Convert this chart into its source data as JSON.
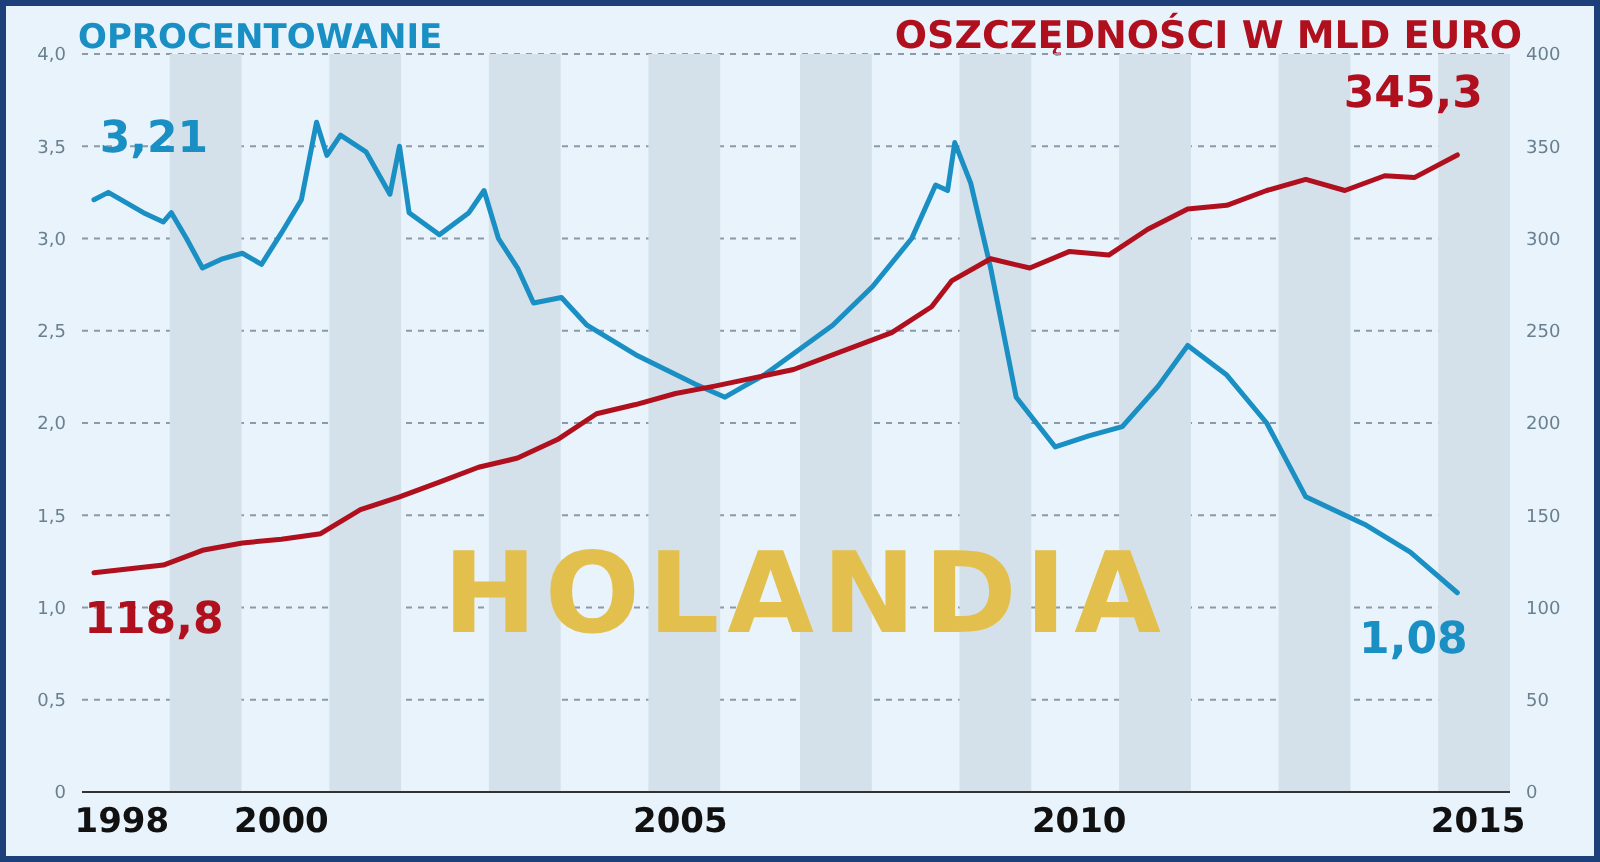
{
  "chart_data": {
    "type": "line",
    "ylabel": "OPROCENTOWANIE",
    "y2label": "OSZCZĘDNOŚCI W MLD EURO",
    "annotations": [
      "HOLANDIA"
    ],
    "xlim": [
      1997.5,
      2015.4
    ],
    "xticks": [
      1998,
      2000,
      2005,
      2010,
      2015
    ],
    "ylim": [
      0,
      4
    ],
    "yticks": [
      0,
      {
        "value": 0.5,
        "label": "0,5"
      },
      {
        "value": 1,
        "label": "1,0"
      },
      {
        "value": 1.5,
        "label": "1,5"
      },
      {
        "value": 2,
        "label": "2,0"
      },
      {
        "value": 2.5,
        "label": "2,5"
      },
      {
        "value": 3,
        "label": "3,0"
      },
      {
        "value": 3.5,
        "label": "3,5"
      },
      {
        "value": 4,
        "label": "4,0"
      }
    ],
    "y2lim": [
      0,
      400
    ],
    "y2ticks": [
      0,
      50,
      100,
      150,
      200,
      250,
      300,
      350,
      400
    ],
    "grid": "y",
    "legend": false,
    "marker": "none",
    "line_style": "solid",
    "bands": [
      {
        "axis": "x",
        "from": 1998.6,
        "to": 1999.5,
        "color": "#d5e1ea"
      },
      {
        "axis": "x",
        "from": 2000.6,
        "to": 2001.5,
        "color": "#d5e1ea"
      },
      {
        "axis": "x",
        "from": 2002.6,
        "to": 2003.5,
        "color": "#d5e1ea"
      },
      {
        "axis": "x",
        "from": 2004.6,
        "to": 2005.5,
        "color": "#d5e1ea"
      },
      {
        "axis": "x",
        "from": 2006.5,
        "to": 2007.4,
        "color": "#d5e1ea"
      },
      {
        "axis": "x",
        "from": 2008.5,
        "to": 2009.4,
        "color": "#d5e1ea"
      },
      {
        "axis": "x",
        "from": 2010.5,
        "to": 2011.4,
        "color": "#d5e1ea"
      },
      {
        "axis": "x",
        "from": 2012.5,
        "to": 2013.4,
        "color": "#d5e1ea"
      },
      {
        "axis": "x",
        "from": 2014.5,
        "to": 2015.4,
        "color": "#d5e1ea"
      }
    ],
    "series": [
      {
        "color": "#1a8fc4",
        "x": [
          1997.65,
          1997.83,
          1998.27,
          1998.52,
          1998.62,
          1998.81,
          1999.01,
          1999.26,
          1999.51,
          1999.75,
          2000.0,
          2000.25,
          2000.44,
          2000.57,
          2000.74,
          2001.06,
          2001.36,
          2001.48,
          2001.6,
          2001.98,
          2002.35,
          2002.54,
          2002.72,
          2002.96,
          2003.16,
          2003.51,
          2003.83,
          2004.44,
          2005.19,
          2005.56,
          2005.8,
          2006.05,
          2006.91,
          2007.41,
          2007.9,
          2008.2,
          2008.35,
          2008.44,
          2008.64,
          2008.89,
          2009.21,
          2009.7,
          2010.12,
          2010.54,
          2010.99,
          2011.36,
          2011.85,
          2012.35,
          2012.84,
          2013.58,
          2014.15,
          2014.74
        ],
        "values": [
          3.21,
          3.25,
          3.14,
          3.09,
          3.14,
          3.0,
          2.84,
          2.89,
          2.92,
          2.86,
          3.03,
          3.21,
          3.63,
          3.45,
          3.56,
          3.47,
          3.24,
          3.5,
          3.14,
          3.02,
          3.14,
          3.26,
          3.0,
          2.84,
          2.65,
          2.68,
          2.53,
          2.37,
          2.21,
          2.14,
          2.2,
          2.26,
          2.53,
          2.74,
          3.0,
          3.29,
          3.26,
          3.52,
          3.3,
          2.84,
          2.14,
          1.87,
          1.93,
          1.98,
          2.2,
          2.42,
          2.26,
          2.0,
          1.6,
          1.45,
          1.3,
          1.08
        ],
        "value_labels": [
          "3,21",
          null,
          null,
          null,
          null,
          null,
          null,
          null,
          null,
          null,
          null,
          null,
          null,
          null,
          null,
          null,
          null,
          null,
          null,
          null,
          null,
          null,
          null,
          null,
          null,
          null,
          null,
          null,
          null,
          null,
          null,
          null,
          null,
          null,
          null,
          null,
          null,
          null,
          null,
          null,
          null,
          null,
          null,
          null,
          null,
          null,
          null,
          null,
          null,
          null,
          null,
          "1,08"
        ]
      },
      {
        "color": "#b0101e",
        "axis": "y2",
        "x": [
          1997.65,
          1998.52,
          1999.01,
          1999.51,
          2000.0,
          2000.49,
          2000.99,
          2001.48,
          2001.98,
          2002.47,
          2002.96,
          2003.46,
          2003.95,
          2004.44,
          2004.94,
          2005.43,
          2006.42,
          2007.65,
          2008.15,
          2008.4,
          2008.89,
          2009.38,
          2009.88,
          2010.37,
          2010.86,
          2011.36,
          2011.85,
          2012.35,
          2012.84,
          2013.33,
          2013.83,
          2014.2,
          2014.74
        ],
        "values": [
          118.8,
          123,
          131,
          135,
          137,
          140,
          153,
          160,
          168,
          176,
          181,
          191,
          205,
          210,
          216,
          220,
          229,
          249,
          263,
          277,
          289,
          284,
          293,
          291,
          305,
          316,
          318,
          326,
          332,
          326,
          334,
          333,
          345.3
        ],
        "value_labels": [
          "118,8",
          null,
          null,
          null,
          null,
          null,
          null,
          null,
          null,
          null,
          null,
          null,
          null,
          null,
          null,
          null,
          null,
          null,
          null,
          null,
          null,
          null,
          null,
          null,
          null,
          null,
          null,
          null,
          null,
          null,
          null,
          null,
          "345,3"
        ]
      }
    ]
  }
}
